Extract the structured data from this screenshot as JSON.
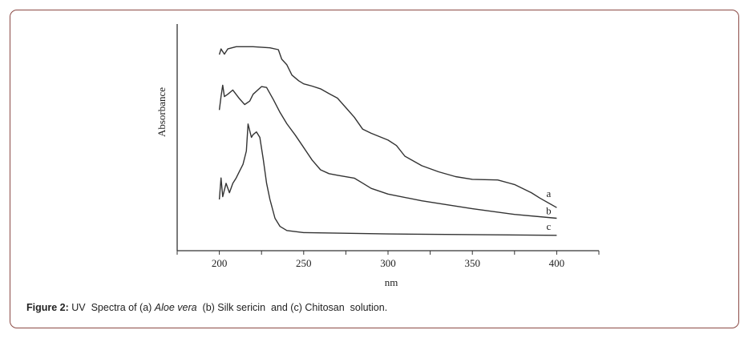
{
  "caption": {
    "label": "Figure 2:",
    "text_1": " UV  Spectra of (a) ",
    "italic": "Aloe vera",
    "text_2": "  (b) Silk sericin  and (c) Chitosan  solution."
  },
  "colors": {
    "border": "#8b4a45",
    "line": "#333333"
  },
  "chart_data": {
    "type": "line",
    "title": "",
    "xlabel": "nm",
    "ylabel": "Absorbance",
    "xlim": [
      175,
      425
    ],
    "ylim": [
      0,
      1
    ],
    "xticks": [
      200,
      250,
      300,
      350,
      400
    ],
    "minor_xticks": [
      175,
      225,
      275,
      325,
      375,
      425
    ],
    "y_tick_labels": false,
    "grid": false,
    "legend": "none; curves labelled at right end",
    "series": [
      {
        "name": "a",
        "x": [
          200,
          201,
          203,
          205,
          210,
          220,
          230,
          235,
          237,
          240,
          243,
          247,
          250,
          255,
          260,
          265,
          270,
          275,
          280,
          285,
          290,
          300,
          305,
          310,
          320,
          330,
          340,
          350,
          365,
          375,
          385,
          390,
          400
        ],
        "y": [
          0.865,
          0.89,
          0.867,
          0.89,
          0.9,
          0.9,
          0.895,
          0.887,
          0.845,
          0.82,
          0.775,
          0.75,
          0.736,
          0.726,
          0.714,
          0.693,
          0.673,
          0.631,
          0.589,
          0.536,
          0.518,
          0.488,
          0.464,
          0.417,
          0.375,
          0.348,
          0.327,
          0.315,
          0.312,
          0.292,
          0.256,
          0.232,
          0.19
        ]
      },
      {
        "name": "b",
        "x": [
          200,
          201,
          202,
          203,
          205,
          208,
          212,
          215,
          218,
          220,
          225,
          228,
          232,
          236,
          240,
          245,
          250,
          255,
          260,
          265,
          270,
          280,
          285,
          290,
          300,
          320,
          350,
          375,
          400
        ],
        "y": [
          0.621,
          0.68,
          0.73,
          0.68,
          0.69,
          0.709,
          0.67,
          0.645,
          0.66,
          0.69,
          0.724,
          0.72,
          0.667,
          0.61,
          0.56,
          0.51,
          0.455,
          0.4,
          0.357,
          0.34,
          0.333,
          0.32,
          0.298,
          0.275,
          0.25,
          0.22,
          0.185,
          0.16,
          0.143
        ]
      },
      {
        "name": "c",
        "x": [
          200,
          201,
          202,
          204,
          206,
          208,
          210,
          212,
          214,
          216,
          217,
          219,
          220,
          222,
          224,
          226,
          228,
          230,
          233,
          236,
          240,
          250,
          300,
          400
        ],
        "y": [
          0.226,
          0.321,
          0.238,
          0.297,
          0.256,
          0.297,
          0.321,
          0.351,
          0.381,
          0.44,
          0.559,
          0.5,
          0.512,
          0.524,
          0.5,
          0.405,
          0.298,
          0.226,
          0.143,
          0.107,
          0.089,
          0.08,
          0.074,
          0.068
        ]
      }
    ]
  }
}
